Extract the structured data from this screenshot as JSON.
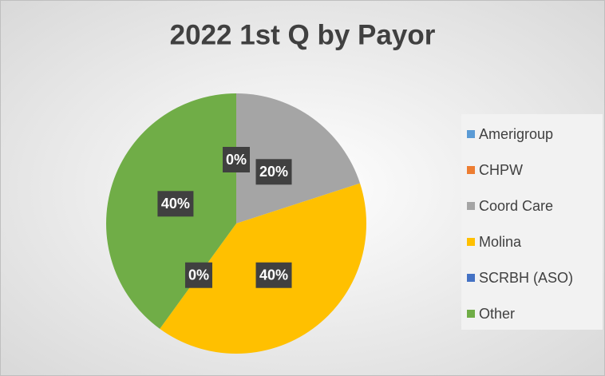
{
  "chart_data": {
    "type": "pie",
    "title": "2022 1st Q by Payor",
    "categories": [
      "Amerigroup",
      "CHPW",
      "Coord Care",
      "Molina",
      "SCRBH (ASO)",
      "Other"
    ],
    "values": [
      0,
      0,
      20,
      40,
      0,
      40
    ],
    "value_labels": [
      "0%",
      "0%",
      "20%",
      "40%",
      "0%",
      "40%"
    ],
    "colors": [
      "#5b9bd5",
      "#ed7d31",
      "#a5a5a5",
      "#ffc000",
      "#4472c4",
      "#70ad47"
    ],
    "legend": "right"
  }
}
